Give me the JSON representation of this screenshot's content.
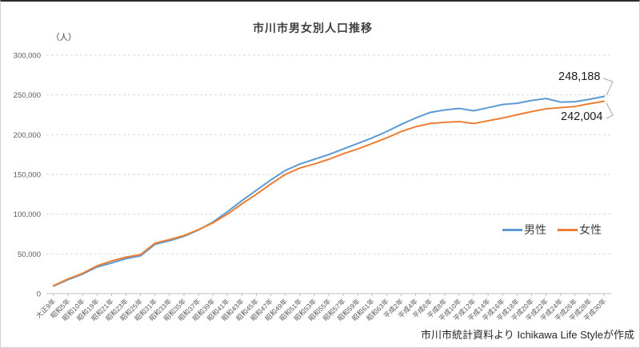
{
  "chart": {
    "title": "市川市男女別人口推移",
    "y_unit_label": "（人）",
    "legend": {
      "male": "男性",
      "female": "女性"
    },
    "annotations": {
      "male_end": "248,188",
      "female_end": "242,004"
    },
    "footer": "市川市統計資料より Ichikawa Life Styleが作成",
    "colors": {
      "male_line": "#5B9BD5",
      "female_line": "#ED7D31",
      "gridline": "#D9D9D9",
      "axis_line": "#BFBFBF",
      "tick_text": "#595959",
      "leader_line": "#A6A6A6"
    }
  },
  "chart_data": {
    "type": "line",
    "title": "市川市男女別人口推移",
    "ylabel": "（人）",
    "ylim": [
      0,
      300000
    ],
    "ytick_step": 50000,
    "ytick_labels": [
      "0",
      "50,000",
      "100,000",
      "150,000",
      "200,000",
      "250,000",
      "300,000"
    ],
    "grid": true,
    "legend_position": "inside-bottom-right",
    "categories": [
      "大正9年",
      "昭和5年",
      "昭和10年",
      "昭和19年",
      "昭和21年",
      "昭和23年",
      "昭和25年",
      "昭和31年",
      "昭和33年",
      "昭和35年",
      "昭和37年",
      "昭和39年",
      "昭和41年",
      "昭和43年",
      "昭和45年",
      "昭和47年",
      "昭和49年",
      "昭和51年",
      "昭和53年",
      "昭和55年",
      "昭和57年",
      "昭和59年",
      "昭和61年",
      "昭和63年",
      "平成2年",
      "平成4年",
      "平成6年",
      "平成8年",
      "平成10年",
      "平成12年",
      "平成14年",
      "平成16年",
      "平成18年",
      "平成20年",
      "平成22年",
      "平成24年",
      "平成26年",
      "平成28年",
      "平成30年"
    ],
    "series": [
      {
        "name": "男性",
        "color": "#5B9BD5",
        "values": [
          9500,
          17500,
          24500,
          33500,
          38500,
          44000,
          47500,
          62000,
          66500,
          72000,
          80000,
          90000,
          103000,
          117000,
          130000,
          143000,
          155000,
          163000,
          169000,
          175000,
          182000,
          189000,
          196000,
          204000,
          213000,
          221000,
          228000,
          231000,
          233000,
          230000,
          234000,
          238000,
          239500,
          243000,
          245500,
          241000,
          241500,
          244500,
          248188
        ]
      },
      {
        "name": "女性",
        "color": "#ED7D31",
        "values": [
          10000,
          18500,
          25500,
          35000,
          41000,
          46000,
          49000,
          63500,
          68000,
          73000,
          80500,
          89000,
          100000,
          113000,
          125000,
          138000,
          150000,
          158000,
          163000,
          169000,
          176000,
          182000,
          189000,
          196000,
          204000,
          210000,
          214000,
          215500,
          216500,
          214000,
          217500,
          221000,
          225000,
          229000,
          232500,
          234000,
          235500,
          239000,
          242004
        ]
      }
    ],
    "end_labels": {
      "男性": "248,188",
      "女性": "242,004"
    }
  }
}
